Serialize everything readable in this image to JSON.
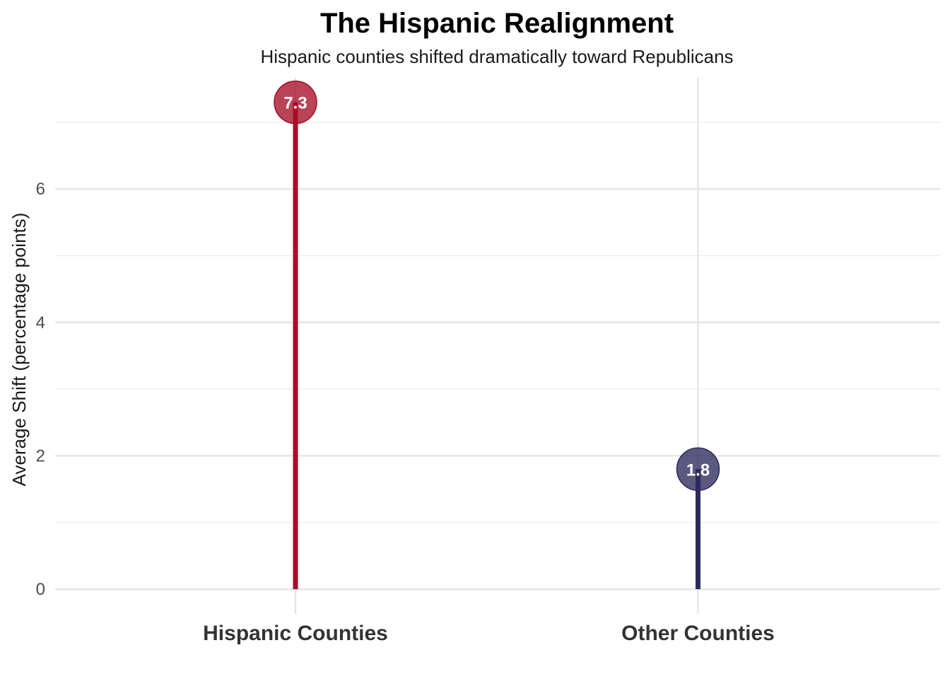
{
  "chart_data": {
    "type": "lollipop",
    "title": "The Hispanic Realignment",
    "subtitle": "Hispanic counties shifted dramatically toward Republicans",
    "xlabel": "",
    "ylabel": "Average Shift (percentage points)",
    "categories": [
      "Hispanic Counties",
      "Other Counties"
    ],
    "values": [
      7.3,
      1.8
    ],
    "point_labels": [
      "7.3",
      "1.8"
    ],
    "colors": [
      "#a50f27",
      "#2c2a5c"
    ],
    "ylim": [
      0,
      7.6
    ],
    "yticks": [
      0,
      2,
      4,
      6
    ],
    "ytick_labels": [
      "0",
      "2",
      "4",
      "6"
    ],
    "grid": true,
    "legend": "none"
  }
}
